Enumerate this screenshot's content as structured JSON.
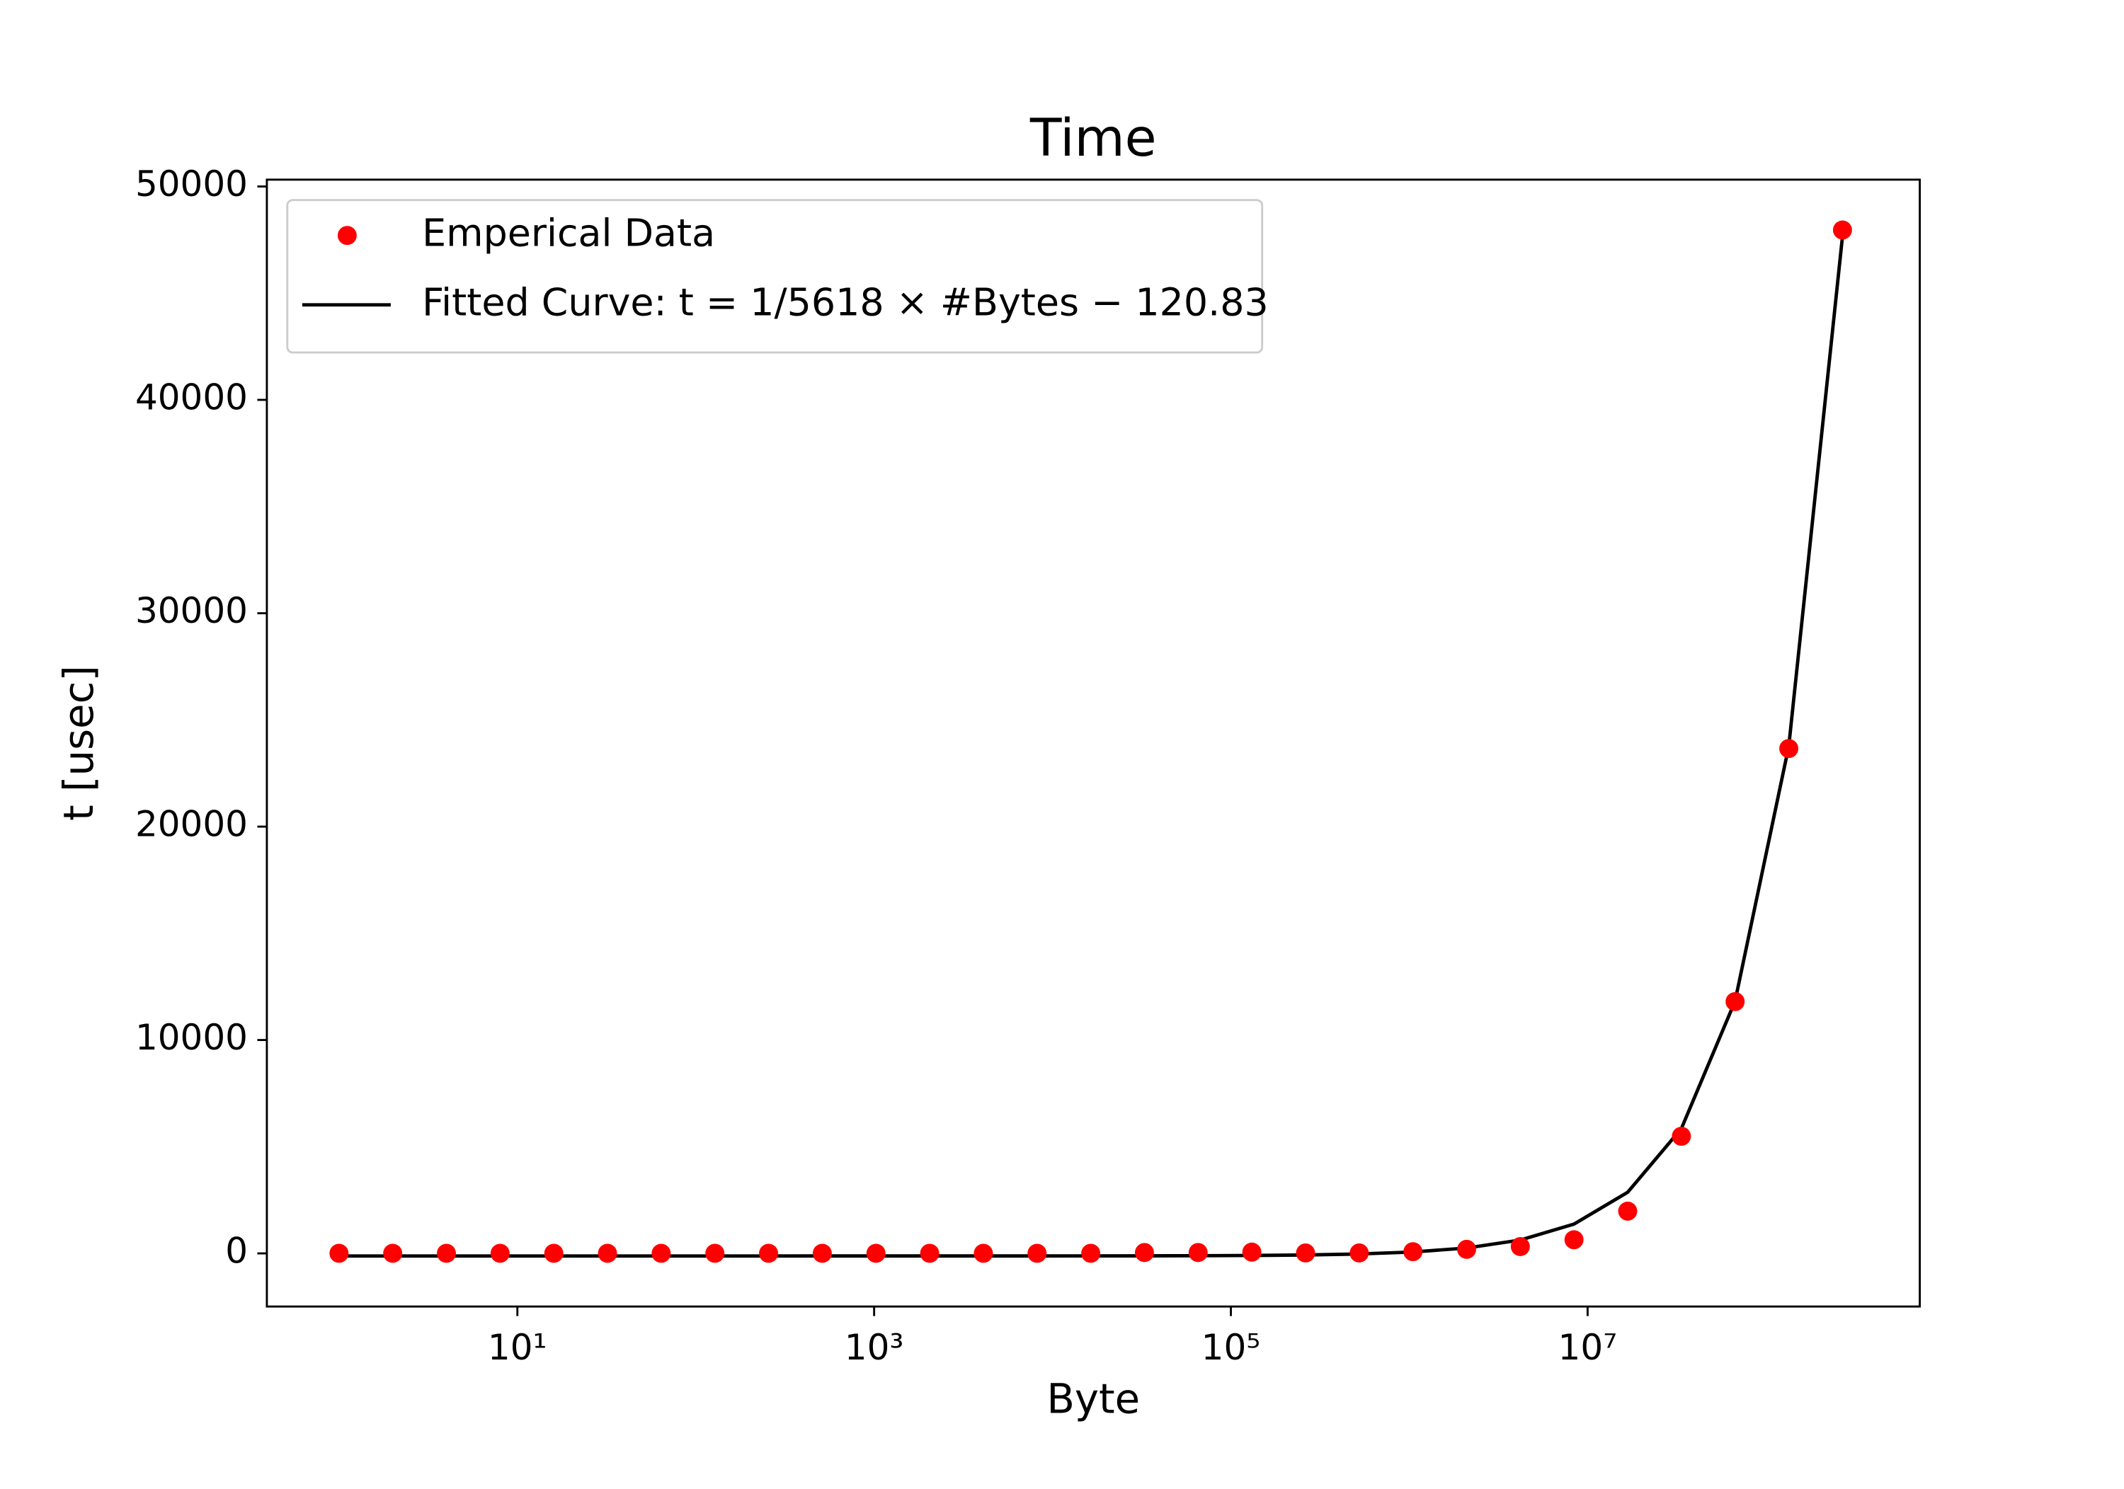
{
  "chart_data": {
    "type": "scatter",
    "title": "Time",
    "xlabel": "Byte",
    "ylabel": "t [usec]",
    "xscale": "log",
    "xlim": [
      0.394,
      728000000
    ],
    "ylim": [
      -2490,
      50320
    ],
    "xticks": [
      {
        "value": 10,
        "label": "10¹"
      },
      {
        "value": 1000,
        "label": "10³"
      },
      {
        "value": 100000,
        "label": "10⁵"
      },
      {
        "value": 10000000,
        "label": "10⁷"
      }
    ],
    "yticks": [
      0,
      10000,
      20000,
      30000,
      40000,
      50000
    ],
    "legend": "upper left",
    "x": [
      1,
      2,
      4,
      8,
      16,
      32,
      64,
      128,
      256,
      512,
      1024,
      2048,
      4096,
      8192,
      16384,
      32768,
      65536,
      131072,
      262144,
      524288,
      1048576,
      2097152,
      4194304,
      8388608,
      16777216,
      33554432,
      67108864,
      134217728,
      268435456
    ],
    "series": [
      {
        "name": "Emperical Data",
        "color": "#ff0000",
        "marker": "o",
        "values": [
          5,
          5,
          5,
          5,
          5,
          5,
          5,
          5,
          5,
          5,
          5,
          5,
          5,
          5,
          5,
          40,
          40,
          60,
          20,
          20,
          80,
          190,
          320,
          640,
          1980,
          5490,
          11800,
          23660,
          47960
        ]
      },
      {
        "name": "Fitted Curve: t = 1/5618 × #Bytes − 120.83",
        "color": "#000000",
        "marker": "line",
        "values": [
          -120.8,
          -120.8,
          -120.8,
          -120.8,
          -120.8,
          -120.8,
          -120.8,
          -120.8,
          -120.8,
          -120.7,
          -120.6,
          -120.5,
          -120.1,
          -119.4,
          -117.9,
          -115.0,
          -109.2,
          -97.5,
          -74.2,
          -27.5,
          65.8,
          252.4,
          625.8,
          1372.4,
          2865.6,
          5852.0,
          11824.8,
          23770.4,
          47661.6
        ]
      }
    ]
  }
}
